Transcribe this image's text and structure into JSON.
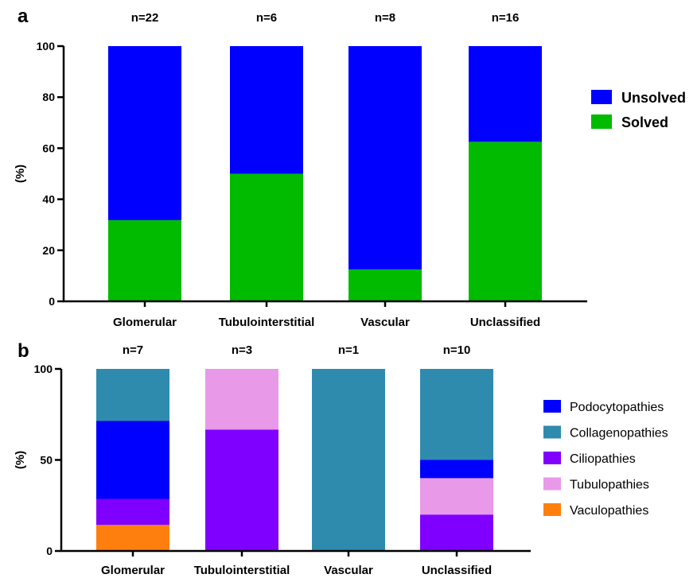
{
  "chart_data": [
    {
      "panel": "a",
      "type": "bar",
      "stacked": true,
      "categories": [
        "Glomerular",
        "Tubulointerstitial",
        "Vascular",
        "Unclassified"
      ],
      "counts": [
        "n=22",
        "n=6",
        "n=8",
        "n=16"
      ],
      "ylabel": "(%)",
      "ylim": [
        0,
        100
      ],
      "yticks": [
        0,
        20,
        40,
        60,
        80,
        100
      ],
      "grid": false,
      "legend_position": "right",
      "legend_order": [
        "Unsolved",
        "Solved"
      ],
      "series": [
        {
          "name": "Solved",
          "color": "#00bb00",
          "values": [
            31.8,
            50,
            12.5,
            62.5
          ]
        },
        {
          "name": "Unsolved",
          "color": "#0000ff",
          "values": [
            68.2,
            50,
            87.5,
            37.5
          ]
        }
      ]
    },
    {
      "panel": "b",
      "type": "bar",
      "stacked": true,
      "categories": [
        "Glomerular",
        "Tubulointerstitial",
        "Vascular",
        "Unclassified"
      ],
      "counts": [
        "n=7",
        "n=3",
        "n=1",
        "n=10"
      ],
      "ylabel": "(%)",
      "ylim": [
        0,
        100
      ],
      "yticks": [
        0,
        50,
        100
      ],
      "grid": false,
      "legend_position": "right",
      "legend_order": [
        "Podocytopathies",
        "Collagenopathies",
        "Ciliopathies",
        "Tubulopathies",
        "Vaculopathies"
      ],
      "series": [
        {
          "name": "Vaculopathies",
          "color": "#ff7f0e",
          "values": [
            14.3,
            0,
            0,
            0
          ]
        },
        {
          "name": "Ciliopathies",
          "color": "#8000ff",
          "values": [
            14.3,
            66.7,
            0,
            20
          ]
        },
        {
          "name": "Tubulopathies",
          "color": "#e899e8",
          "values": [
            0,
            33.3,
            0,
            20
          ]
        },
        {
          "name": "Podocytopathies",
          "color": "#0000ff",
          "values": [
            42.8,
            0,
            0,
            10
          ]
        },
        {
          "name": "Collagenopathies",
          "color": "#2e8bae",
          "values": [
            28.6,
            0,
            100,
            50
          ]
        }
      ]
    }
  ]
}
